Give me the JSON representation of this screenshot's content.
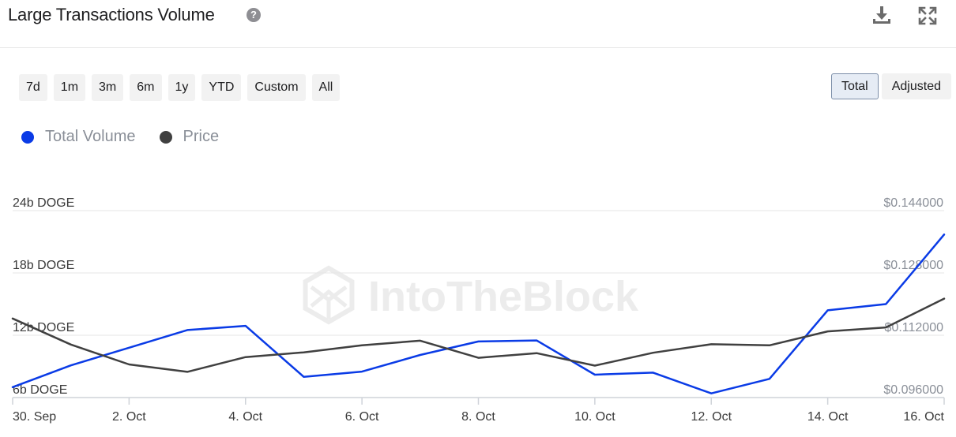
{
  "header": {
    "title": "Large Transactions Volume",
    "help_symbol": "?"
  },
  "range_buttons": [
    "7d",
    "1m",
    "3m",
    "6m",
    "1y",
    "YTD",
    "Custom",
    "All"
  ],
  "mode_buttons": [
    {
      "label": "Total",
      "active": true
    },
    {
      "label": "Adjusted",
      "active": false
    }
  ],
  "legend": [
    {
      "label": "Total Volume",
      "color": "#0a3be6"
    },
    {
      "label": "Price",
      "color": "#404040"
    }
  ],
  "chart_data": {
    "type": "line",
    "x": [
      "30. Sep",
      "1. Oct",
      "2. Oct",
      "3. Oct",
      "4. Oct",
      "5. Oct",
      "6. Oct",
      "7. Oct",
      "8. Oct",
      "9. Oct",
      "10. Oct",
      "11. Oct",
      "12. Oct",
      "13. Oct",
      "14. Oct",
      "15. Oct",
      "16. Oct"
    ],
    "x_tick_labels": [
      "30. Sep",
      "2. Oct",
      "4. Oct",
      "6. Oct",
      "8. Oct",
      "10. Oct",
      "12. Oct",
      "14. Oct",
      "16. Oct"
    ],
    "x_tick_index": [
      0,
      2,
      4,
      6,
      8,
      10,
      12,
      14,
      16
    ],
    "series": [
      {
        "name": "Total Volume",
        "axis": "left",
        "color": "#0a3be6",
        "values": [
          7.0,
          9.1,
          10.8,
          12.5,
          12.9,
          8.0,
          8.5,
          10.1,
          11.4,
          11.5,
          8.2,
          8.4,
          6.4,
          7.8,
          14.4,
          15.0,
          21.7
        ]
      },
      {
        "name": "Price",
        "axis": "right",
        "color": "#404040",
        "values": [
          0.1163,
          0.1096,
          0.1045,
          0.1026,
          0.1064,
          0.1076,
          0.1094,
          0.1106,
          0.1062,
          0.1074,
          0.1042,
          0.1075,
          0.1097,
          0.1094,
          0.113,
          0.114,
          0.1214
        ]
      }
    ],
    "y_left": {
      "ticks": [
        6,
        12,
        18,
        24
      ],
      "tick_labels": [
        "6b DOGE",
        "12b DOGE",
        "18b DOGE",
        "24b DOGE"
      ],
      "range": [
        6,
        24
      ]
    },
    "y_right": {
      "ticks": [
        0.096,
        0.112,
        0.128,
        0.144
      ],
      "tick_labels": [
        "$0.096000",
        "$0.112000",
        "$0.128000",
        "$0.144000"
      ],
      "range": [
        0.096,
        0.144
      ]
    },
    "grid": true,
    "watermark": "IntoTheBlock"
  }
}
